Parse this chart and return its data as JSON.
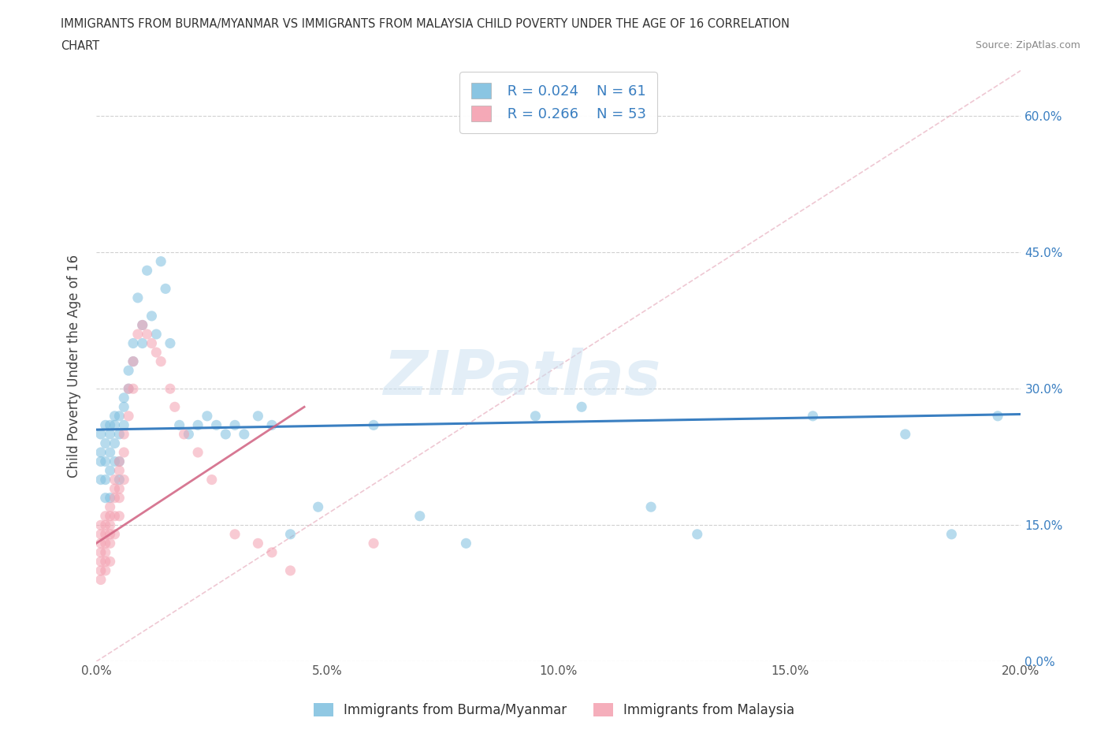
{
  "title_line1": "IMMIGRANTS FROM BURMA/MYANMAR VS IMMIGRANTS FROM MALAYSIA CHILD POVERTY UNDER THE AGE OF 16 CORRELATION",
  "title_line2": "CHART",
  "source": "Source: ZipAtlas.com",
  "ylabel": "Child Poverty Under the Age of 16",
  "xlim": [
    0.0,
    0.2
  ],
  "ylim": [
    0.0,
    0.65
  ],
  "yticks": [
    0.0,
    0.15,
    0.3,
    0.45,
    0.6
  ],
  "xticks": [
    0.0,
    0.05,
    0.1,
    0.15,
    0.2
  ],
  "ytick_labels": [
    "0.0%",
    "15.0%",
    "30.0%",
    "45.0%",
    "60.0%"
  ],
  "xtick_labels": [
    "0.0%",
    "5.0%",
    "10.0%",
    "15.0%",
    "20.0%"
  ],
  "color_blue": "#7dbfdf",
  "color_pink": "#f4a0b0",
  "color_blue_line": "#3a7fc1",
  "color_pink_line": "#d06080",
  "R_blue": 0.024,
  "N_blue": 61,
  "R_pink": 0.266,
  "N_pink": 53,
  "legend_label_blue": "Immigrants from Burma/Myanmar",
  "legend_label_pink": "Immigrants from Malaysia",
  "watermark": "ZIPatlas",
  "blue_x": [
    0.001,
    0.001,
    0.001,
    0.001,
    0.002,
    0.002,
    0.002,
    0.002,
    0.002,
    0.003,
    0.003,
    0.003,
    0.003,
    0.003,
    0.004,
    0.004,
    0.004,
    0.004,
    0.005,
    0.005,
    0.005,
    0.005,
    0.006,
    0.006,
    0.006,
    0.007,
    0.007,
    0.008,
    0.008,
    0.009,
    0.01,
    0.01,
    0.011,
    0.012,
    0.013,
    0.014,
    0.015,
    0.016,
    0.018,
    0.02,
    0.022,
    0.024,
    0.026,
    0.028,
    0.03,
    0.032,
    0.035,
    0.038,
    0.042,
    0.048,
    0.06,
    0.07,
    0.08,
    0.095,
    0.105,
    0.12,
    0.13,
    0.155,
    0.175,
    0.185,
    0.195
  ],
  "blue_y": [
    0.25,
    0.23,
    0.22,
    0.2,
    0.26,
    0.24,
    0.22,
    0.2,
    0.18,
    0.26,
    0.25,
    0.23,
    0.21,
    0.18,
    0.27,
    0.26,
    0.24,
    0.22,
    0.27,
    0.25,
    0.22,
    0.2,
    0.29,
    0.28,
    0.26,
    0.32,
    0.3,
    0.35,
    0.33,
    0.4,
    0.37,
    0.35,
    0.43,
    0.38,
    0.36,
    0.44,
    0.41,
    0.35,
    0.26,
    0.25,
    0.26,
    0.27,
    0.26,
    0.25,
    0.26,
    0.25,
    0.27,
    0.26,
    0.14,
    0.17,
    0.26,
    0.16,
    0.13,
    0.27,
    0.28,
    0.17,
    0.14,
    0.27,
    0.25,
    0.14,
    0.27
  ],
  "pink_x": [
    0.001,
    0.001,
    0.001,
    0.001,
    0.001,
    0.001,
    0.001,
    0.002,
    0.002,
    0.002,
    0.002,
    0.002,
    0.002,
    0.002,
    0.003,
    0.003,
    0.003,
    0.003,
    0.003,
    0.003,
    0.004,
    0.004,
    0.004,
    0.004,
    0.004,
    0.005,
    0.005,
    0.005,
    0.005,
    0.005,
    0.006,
    0.006,
    0.006,
    0.007,
    0.007,
    0.008,
    0.008,
    0.009,
    0.01,
    0.011,
    0.012,
    0.013,
    0.014,
    0.016,
    0.017,
    0.019,
    0.022,
    0.025,
    0.03,
    0.035,
    0.038,
    0.042,
    0.06
  ],
  "pink_y": [
    0.15,
    0.14,
    0.13,
    0.12,
    0.11,
    0.1,
    0.09,
    0.16,
    0.15,
    0.14,
    0.13,
    0.12,
    0.11,
    0.1,
    0.17,
    0.16,
    0.15,
    0.14,
    0.13,
    0.11,
    0.2,
    0.19,
    0.18,
    0.16,
    0.14,
    0.22,
    0.21,
    0.19,
    0.18,
    0.16,
    0.25,
    0.23,
    0.2,
    0.3,
    0.27,
    0.33,
    0.3,
    0.36,
    0.37,
    0.36,
    0.35,
    0.34,
    0.33,
    0.3,
    0.28,
    0.25,
    0.23,
    0.2,
    0.14,
    0.13,
    0.12,
    0.1,
    0.13
  ]
}
